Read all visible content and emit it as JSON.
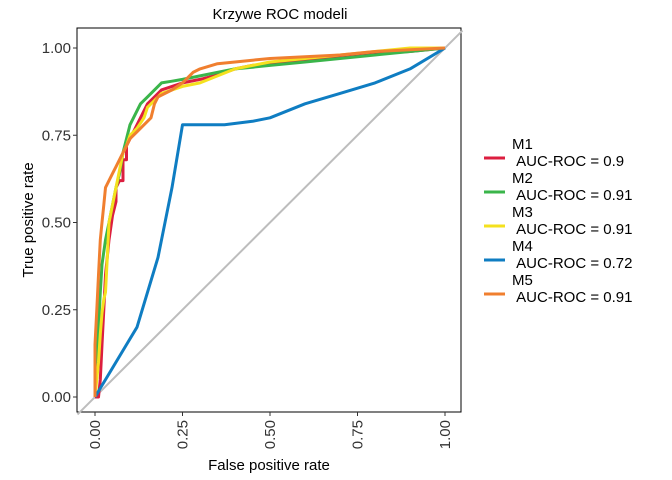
{
  "chart_data": {
    "type": "line",
    "title": "Krzywe ROC modeli",
    "xlabel": "False positive rate",
    "ylabel": "True positive rate",
    "xlim": [
      0,
      1
    ],
    "ylim": [
      0,
      1
    ],
    "x_ticks": [
      "0.00",
      "0.25",
      "0.50",
      "0.75",
      "1.00"
    ],
    "y_ticks": [
      "0.00",
      "0.25",
      "0.50",
      "0.75",
      "1.00"
    ],
    "grid": false,
    "legend_position": "right",
    "reference_line": {
      "color": "#bdbdbd",
      "points": [
        [
          0,
          0
        ],
        [
          1,
          1
        ]
      ]
    },
    "series": [
      {
        "name": "M1",
        "auc_label": "AUC-ROC = 0.9",
        "color": "#dc1e3f",
        "points": [
          [
            0,
            0
          ],
          [
            0.01,
            0
          ],
          [
            0.015,
            0.05
          ],
          [
            0.02,
            0.15
          ],
          [
            0.025,
            0.25
          ],
          [
            0.03,
            0.35
          ],
          [
            0.04,
            0.45
          ],
          [
            0.05,
            0.52
          ],
          [
            0.06,
            0.56
          ],
          [
            0.06,
            0.6
          ],
          [
            0.07,
            0.62
          ],
          [
            0.08,
            0.62
          ],
          [
            0.08,
            0.68
          ],
          [
            0.09,
            0.68
          ],
          [
            0.09,
            0.72
          ],
          [
            0.1,
            0.74
          ],
          [
            0.11,
            0.76
          ],
          [
            0.12,
            0.78
          ],
          [
            0.13,
            0.8
          ],
          [
            0.14,
            0.82
          ],
          [
            0.15,
            0.84
          ],
          [
            0.17,
            0.86
          ],
          [
            0.19,
            0.88
          ],
          [
            0.22,
            0.89
          ],
          [
            0.25,
            0.9
          ],
          [
            0.3,
            0.91
          ],
          [
            0.34,
            0.92
          ],
          [
            0.37,
            0.93
          ],
          [
            0.4,
            0.94
          ],
          [
            0.45,
            0.95
          ],
          [
            0.5,
            0.955
          ],
          [
            0.55,
            0.96
          ],
          [
            0.6,
            0.965
          ],
          [
            0.7,
            0.975
          ],
          [
            0.8,
            0.985
          ],
          [
            0.9,
            0.99
          ],
          [
            1,
            1
          ]
        ]
      },
      {
        "name": "M2",
        "auc_label": "AUC-ROC = 0.91",
        "color": "#3ab54a",
        "points": [
          [
            0,
            0
          ],
          [
            0.005,
            0.1
          ],
          [
            0.01,
            0.2
          ],
          [
            0.015,
            0.3
          ],
          [
            0.02,
            0.38
          ],
          [
            0.03,
            0.45
          ],
          [
            0.04,
            0.5
          ],
          [
            0.05,
            0.55
          ],
          [
            0.06,
            0.6
          ],
          [
            0.07,
            0.64
          ],
          [
            0.08,
            0.7
          ],
          [
            0.09,
            0.74
          ],
          [
            0.1,
            0.78
          ],
          [
            0.11,
            0.8
          ],
          [
            0.12,
            0.82
          ],
          [
            0.13,
            0.84
          ],
          [
            0.15,
            0.86
          ],
          [
            0.17,
            0.88
          ],
          [
            0.19,
            0.9
          ],
          [
            0.22,
            0.905
          ],
          [
            0.25,
            0.91
          ],
          [
            0.3,
            0.92
          ],
          [
            0.35,
            0.93
          ],
          [
            0.4,
            0.94
          ],
          [
            0.45,
            0.945
          ],
          [
            0.5,
            0.95
          ],
          [
            0.6,
            0.96
          ],
          [
            0.7,
            0.97
          ],
          [
            0.8,
            0.98
          ],
          [
            0.9,
            0.99
          ],
          [
            1,
            1
          ]
        ]
      },
      {
        "name": "M3",
        "auc_label": "AUC-ROC = 0.91",
        "color": "#f4e11e",
        "points": [
          [
            0,
            0
          ],
          [
            0.01,
            0.1
          ],
          [
            0.015,
            0.18
          ],
          [
            0.02,
            0.24
          ],
          [
            0.025,
            0.28
          ],
          [
            0.03,
            0.3
          ],
          [
            0.035,
            0.4
          ],
          [
            0.04,
            0.5
          ],
          [
            0.05,
            0.55
          ],
          [
            0.06,
            0.6
          ],
          [
            0.07,
            0.65
          ],
          [
            0.08,
            0.7
          ],
          [
            0.09,
            0.72
          ],
          [
            0.1,
            0.75
          ],
          [
            0.12,
            0.77
          ],
          [
            0.14,
            0.8
          ],
          [
            0.15,
            0.83
          ],
          [
            0.17,
            0.85
          ],
          [
            0.19,
            0.87
          ],
          [
            0.22,
            0.88
          ],
          [
            0.25,
            0.89
          ],
          [
            0.3,
            0.9
          ],
          [
            0.35,
            0.92
          ],
          [
            0.4,
            0.94
          ],
          [
            0.45,
            0.95
          ],
          [
            0.5,
            0.96
          ],
          [
            0.6,
            0.97
          ],
          [
            0.7,
            0.98
          ],
          [
            0.8,
            0.99
          ],
          [
            0.9,
            1
          ],
          [
            1,
            1
          ]
        ]
      },
      {
        "name": "M4",
        "auc_label": "AUC-ROC = 0.72",
        "color": "#0f7dc2",
        "points": [
          [
            0,
            0
          ],
          [
            0.03,
            0.05
          ],
          [
            0.06,
            0.1
          ],
          [
            0.09,
            0.15
          ],
          [
            0.12,
            0.2
          ],
          [
            0.15,
            0.3
          ],
          [
            0.18,
            0.4
          ],
          [
            0.2,
            0.5
          ],
          [
            0.22,
            0.6
          ],
          [
            0.24,
            0.72
          ],
          [
            0.25,
            0.78
          ],
          [
            0.3,
            0.78
          ],
          [
            0.37,
            0.78
          ],
          [
            0.45,
            0.79
          ],
          [
            0.5,
            0.8
          ],
          [
            0.55,
            0.82
          ],
          [
            0.6,
            0.84
          ],
          [
            0.7,
            0.87
          ],
          [
            0.8,
            0.9
          ],
          [
            0.9,
            0.94
          ],
          [
            1,
            1
          ]
        ]
      },
      {
        "name": "M5",
        "auc_label": "AUC-ROC = 0.91",
        "color": "#f07f2f",
        "points": [
          [
            0,
            0
          ],
          [
            0,
            0.15
          ],
          [
            0.005,
            0.25
          ],
          [
            0.01,
            0.35
          ],
          [
            0.015,
            0.45
          ],
          [
            0.02,
            0.5
          ],
          [
            0.025,
            0.55
          ],
          [
            0.03,
            0.6
          ],
          [
            0.04,
            0.62
          ],
          [
            0.05,
            0.64
          ],
          [
            0.06,
            0.66
          ],
          [
            0.07,
            0.68
          ],
          [
            0.08,
            0.7
          ],
          [
            0.09,
            0.72
          ],
          [
            0.1,
            0.74
          ],
          [
            0.12,
            0.76
          ],
          [
            0.14,
            0.78
          ],
          [
            0.16,
            0.8
          ],
          [
            0.17,
            0.84
          ],
          [
            0.18,
            0.86
          ],
          [
            0.2,
            0.87
          ],
          [
            0.22,
            0.88
          ],
          [
            0.25,
            0.9
          ],
          [
            0.28,
            0.93
          ],
          [
            0.3,
            0.94
          ],
          [
            0.35,
            0.955
          ],
          [
            0.4,
            0.96
          ],
          [
            0.45,
            0.965
          ],
          [
            0.5,
            0.97
          ],
          [
            0.6,
            0.975
          ],
          [
            0.7,
            0.98
          ],
          [
            0.8,
            0.99
          ],
          [
            0.9,
            0.995
          ],
          [
            1,
            1
          ]
        ]
      }
    ]
  }
}
